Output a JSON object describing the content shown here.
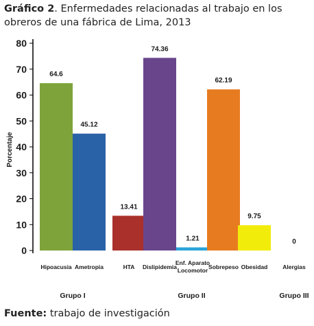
{
  "title": {
    "prefix": "Gráfico 2",
    "text": ". Enfermedades relacionadas al trabajo en los obreros de una fábrica de Lima, 2013"
  },
  "source": {
    "label": "Fuente:",
    "text": " trabajo de investigación"
  },
  "chart_data": {
    "type": "bar",
    "title": "",
    "xlabel": "",
    "ylabel": "Porcentaje",
    "ylim": [
      0,
      80
    ],
    "yticks": [
      0,
      10,
      20,
      30,
      40,
      50,
      60,
      70,
      80
    ],
    "grid": false,
    "categories": [
      "Hipoacusia",
      "Ametropia",
      "HTA",
      "Dislipidemia",
      "Enf. Aparato Locomotor",
      "Sobrepeso",
      "Obesidad",
      "Alergias"
    ],
    "category_lines": [
      [
        "Hipoacusia"
      ],
      [
        "Ametropia"
      ],
      [
        "HTA"
      ],
      [
        "Dislipidemia"
      ],
      [
        "Enf. Aparato",
        "Locomotor"
      ],
      [
        "Sobrepeso"
      ],
      [
        "Obesidad"
      ],
      [
        "Alergias"
      ]
    ],
    "values": [
      64.6,
      45.12,
      13.41,
      74.36,
      1.21,
      62.19,
      9.75,
      0
    ],
    "value_labels": [
      "64.6",
      "45.12",
      "13.41",
      "74.36",
      "1.21",
      "62.19",
      "9.75",
      "0"
    ],
    "colors": [
      "#7ea33b",
      "#2a62a8",
      "#a9302b",
      "#69468c",
      "#2aa4d9",
      "#e77b20",
      "#f2ec0a",
      "#808080"
    ],
    "groups": [
      {
        "label": "Grupo I",
        "members": [
          0,
          1
        ]
      },
      {
        "label": "Grupo II",
        "members": [
          2,
          3,
          4,
          5,
          6
        ]
      },
      {
        "label": "Grupo III",
        "members": [
          7
        ]
      }
    ]
  }
}
